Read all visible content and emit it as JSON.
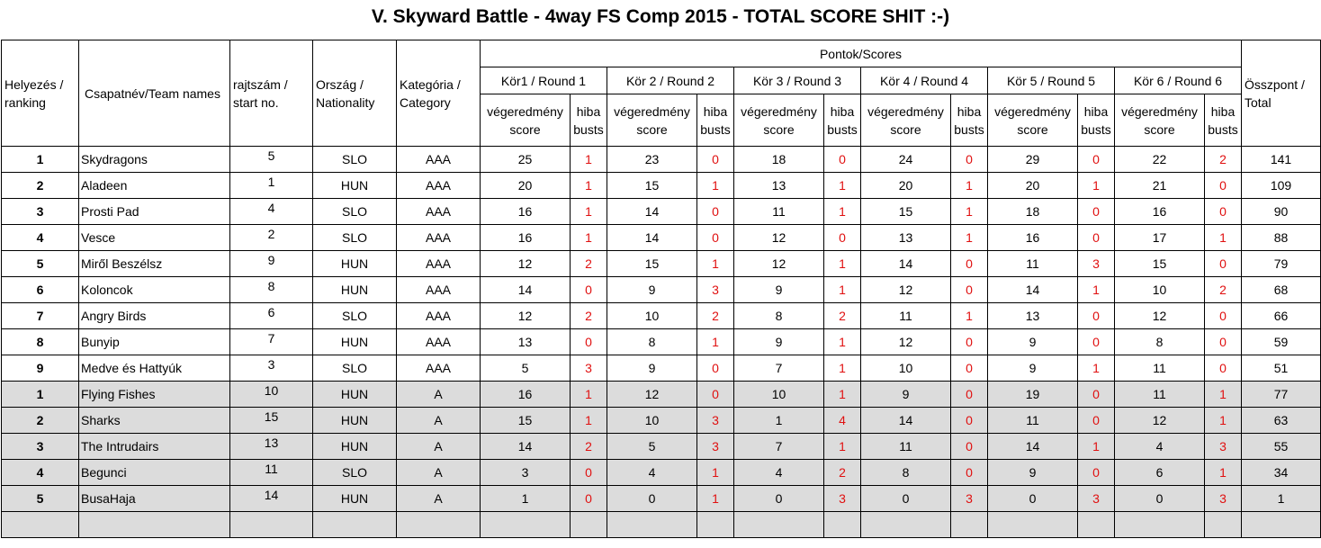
{
  "title": "V. Skyward Battle - 4way FS Comp 2015 - TOTAL SCORE SHIT :-)",
  "headers": {
    "ranking": "Helyezés / ranking",
    "team": "Csapatnév/Team names",
    "start": "rajtszám / start no.",
    "nationality": "Ország / Nationality",
    "category": "Kategória / Category",
    "scores": "Pontok/Scores",
    "total": "Összpont / Total",
    "rounds": [
      "Kör1 / Round 1",
      "Kör 2 / Round 2",
      "Kör 3 / Round 3",
      "Kör 4 / Round 4",
      "Kör 5 / Round 5",
      "Kör 6 / Round 6"
    ],
    "score_label": "végeredmény score",
    "busts_label": "hiba busts"
  },
  "rows": [
    {
      "rank": "1",
      "team": "Skydragons",
      "start": "5",
      "nat": "SLO",
      "cat": "AAA",
      "r": [
        [
          "25",
          "1"
        ],
        [
          "23",
          "0"
        ],
        [
          "18",
          "0"
        ],
        [
          "24",
          "0"
        ],
        [
          "29",
          "0"
        ],
        [
          "22",
          "2"
        ]
      ],
      "total": "141"
    },
    {
      "rank": "2",
      "team": "Aladeen",
      "start": "1",
      "nat": "HUN",
      "cat": "AAA",
      "r": [
        [
          "20",
          "1"
        ],
        [
          "15",
          "1"
        ],
        [
          "13",
          "1"
        ],
        [
          "20",
          "1"
        ],
        [
          "20",
          "1"
        ],
        [
          "21",
          "0"
        ]
      ],
      "total": "109"
    },
    {
      "rank": "3",
      "team": "Prosti Pad",
      "start": "4",
      "nat": "SLO",
      "cat": "AAA",
      "r": [
        [
          "16",
          "1"
        ],
        [
          "14",
          "0"
        ],
        [
          "11",
          "1"
        ],
        [
          "15",
          "1"
        ],
        [
          "18",
          "0"
        ],
        [
          "16",
          "0"
        ]
      ],
      "total": "90"
    },
    {
      "rank": "4",
      "team": "Vesce",
      "start": "2",
      "nat": "SLO",
      "cat": "AAA",
      "r": [
        [
          "16",
          "1"
        ],
        [
          "14",
          "0"
        ],
        [
          "12",
          "0"
        ],
        [
          "13",
          "1"
        ],
        [
          "16",
          "0"
        ],
        [
          "17",
          "1"
        ]
      ],
      "total": "88"
    },
    {
      "rank": "5",
      "team": "Miről Beszélsz",
      "start": "9",
      "nat": "HUN",
      "cat": "AAA",
      "r": [
        [
          "12",
          "2"
        ],
        [
          "15",
          "1"
        ],
        [
          "12",
          "1"
        ],
        [
          "14",
          "0"
        ],
        [
          "11",
          "3"
        ],
        [
          "15",
          "0"
        ]
      ],
      "total": "79"
    },
    {
      "rank": "6",
      "team": "Koloncok",
      "start": "8",
      "nat": "HUN",
      "cat": "AAA",
      "r": [
        [
          "14",
          "0"
        ],
        [
          "9",
          "3"
        ],
        [
          "9",
          "1"
        ],
        [
          "12",
          "0"
        ],
        [
          "14",
          "1"
        ],
        [
          "10",
          "2"
        ]
      ],
      "total": "68"
    },
    {
      "rank": "7",
      "team": "Angry Birds",
      "start": "6",
      "nat": "SLO",
      "cat": "AAA",
      "r": [
        [
          "12",
          "2"
        ],
        [
          "10",
          "2"
        ],
        [
          "8",
          "2"
        ],
        [
          "11",
          "1"
        ],
        [
          "13",
          "0"
        ],
        [
          "12",
          "0"
        ]
      ],
      "total": "66"
    },
    {
      "rank": "8",
      "team": "Bunyip",
      "start": "7",
      "nat": "HUN",
      "cat": "AAA",
      "r": [
        [
          "13",
          "0"
        ],
        [
          "8",
          "1"
        ],
        [
          "9",
          "1"
        ],
        [
          "12",
          "0"
        ],
        [
          "9",
          "0"
        ],
        [
          "8",
          "0"
        ]
      ],
      "total": "59"
    },
    {
      "rank": "9",
      "team": "Medve és Hattyúk",
      "start": "3",
      "nat": "SLO",
      "cat": "AAA",
      "r": [
        [
          "5",
          "3"
        ],
        [
          "9",
          "0"
        ],
        [
          "7",
          "1"
        ],
        [
          "10",
          "0"
        ],
        [
          "9",
          "1"
        ],
        [
          "11",
          "0"
        ]
      ],
      "total": "51"
    },
    {
      "rank": "1",
      "team": "Flying Fishes",
      "start": "10",
      "nat": "HUN",
      "cat": "A",
      "r": [
        [
          "16",
          "1"
        ],
        [
          "12",
          "0"
        ],
        [
          "10",
          "1"
        ],
        [
          "9",
          "0"
        ],
        [
          "19",
          "0"
        ],
        [
          "11",
          "1"
        ]
      ],
      "total": "77"
    },
    {
      "rank": "2",
      "team": "Sharks",
      "start": "15",
      "nat": "HUN",
      "cat": "A",
      "r": [
        [
          "15",
          "1"
        ],
        [
          "10",
          "3"
        ],
        [
          "1",
          "4"
        ],
        [
          "14",
          "0"
        ],
        [
          "11",
          "0"
        ],
        [
          "12",
          "1"
        ]
      ],
      "total": "63"
    },
    {
      "rank": "3",
      "team": "The Intrudairs",
      "start": "13",
      "nat": "HUN",
      "cat": "A",
      "r": [
        [
          "14",
          "2"
        ],
        [
          "5",
          "3"
        ],
        [
          "7",
          "1"
        ],
        [
          "11",
          "0"
        ],
        [
          "14",
          "1"
        ],
        [
          "4",
          "3"
        ]
      ],
      "total": "55"
    },
    {
      "rank": "4",
      "team": "Begunci",
      "start": "11",
      "nat": "SLO",
      "cat": "A",
      "r": [
        [
          "3",
          "0"
        ],
        [
          "4",
          "1"
        ],
        [
          "4",
          "2"
        ],
        [
          "8",
          "0"
        ],
        [
          "9",
          "0"
        ],
        [
          "6",
          "1"
        ]
      ],
      "total": "34"
    },
    {
      "rank": "5",
      "team": "BusaHaja",
      "start": "14",
      "nat": "HUN",
      "cat": "A",
      "r": [
        [
          "1",
          "0"
        ],
        [
          "0",
          "1"
        ],
        [
          "0",
          "3"
        ],
        [
          "0",
          "3"
        ],
        [
          "0",
          "3"
        ],
        [
          "0",
          "3"
        ]
      ],
      "total": "1"
    }
  ]
}
